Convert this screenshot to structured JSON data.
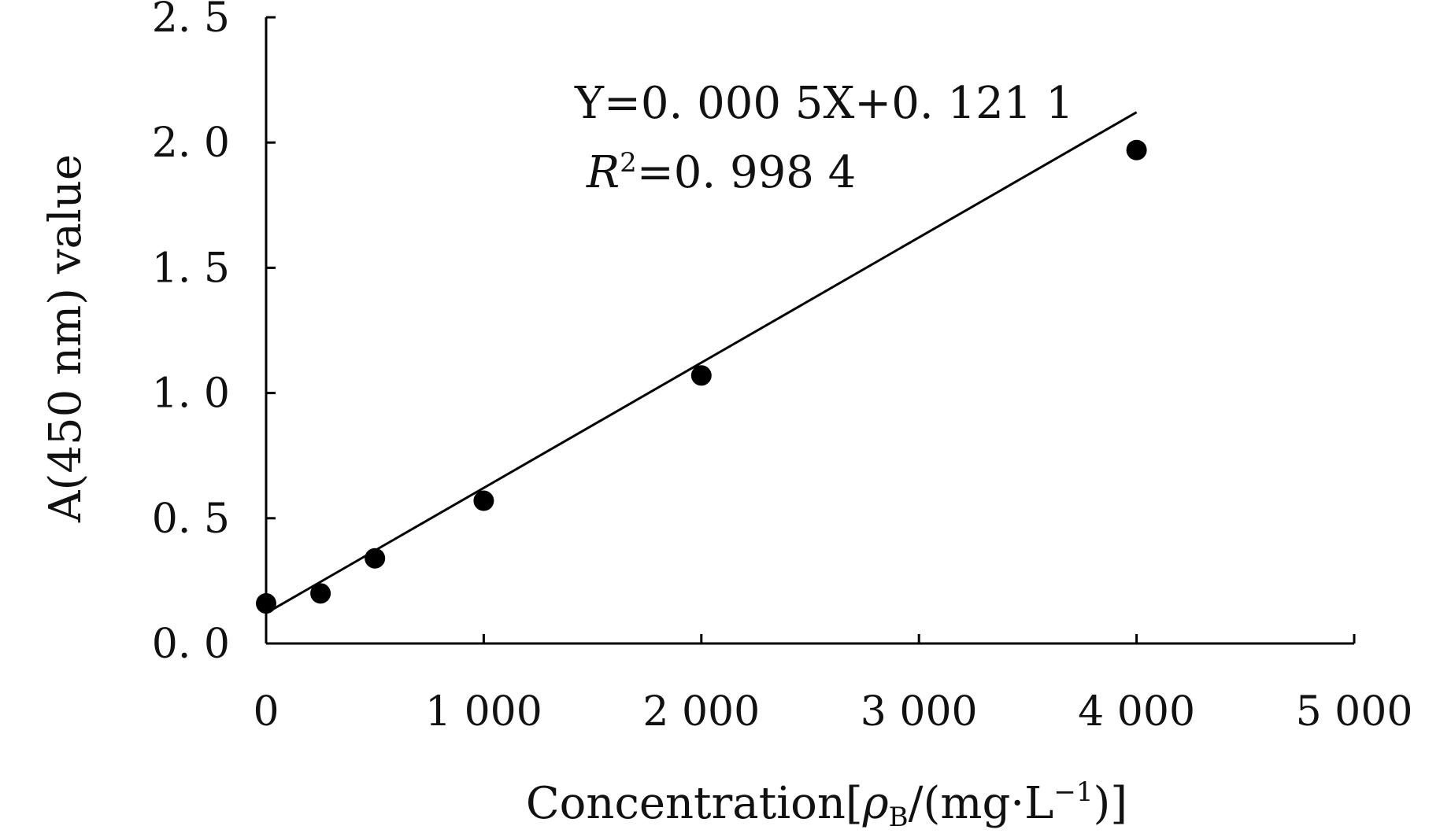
{
  "chart_data": {
    "type": "scatter",
    "title": "",
    "xlabel": "Concentration",
    "xlabel_unit_prefix": "[",
    "xlabel_unit_symbol": "ρ",
    "xlabel_unit_subscript": "B",
    "xlabel_unit_mid": "/(mg·L",
    "xlabel_unit_exp": "−1",
    "xlabel_unit_suffix": ")]",
    "ylabel": "A(450 nm) value",
    "xlim": [
      0,
      5000
    ],
    "ylim": [
      0,
      2.5
    ],
    "xticks": [
      0,
      1000,
      2000,
      3000,
      4000,
      5000
    ],
    "xtick_labels": [
      "0",
      "1 000",
      "2 000",
      "3 000",
      "4 000",
      "5 000"
    ],
    "yticks": [
      0,
      0.5,
      1.0,
      1.5,
      2.0,
      2.5
    ],
    "ytick_labels": [
      "0. 0",
      "0. 5",
      "1. 0",
      "1. 5",
      "2. 0",
      "2. 5"
    ],
    "grid": false,
    "series": [
      {
        "x": [
          0,
          250,
          500,
          1000,
          2000,
          4000
        ],
        "y": [
          0.16,
          0.2,
          0.34,
          0.57,
          1.07,
          1.97
        ],
        "color": "#000000",
        "marker": "filled-circle"
      }
    ],
    "trendline": {
      "slope": 0.0005,
      "intercept": 0.1211,
      "x_range": [
        0,
        4000
      ],
      "color": "#000000"
    },
    "annotations": {
      "equation": "Y=0. 000  5X+0. 121  1",
      "r2_label": "R",
      "r2_exp": "2",
      "r2_value": "=0. 998  4"
    }
  }
}
